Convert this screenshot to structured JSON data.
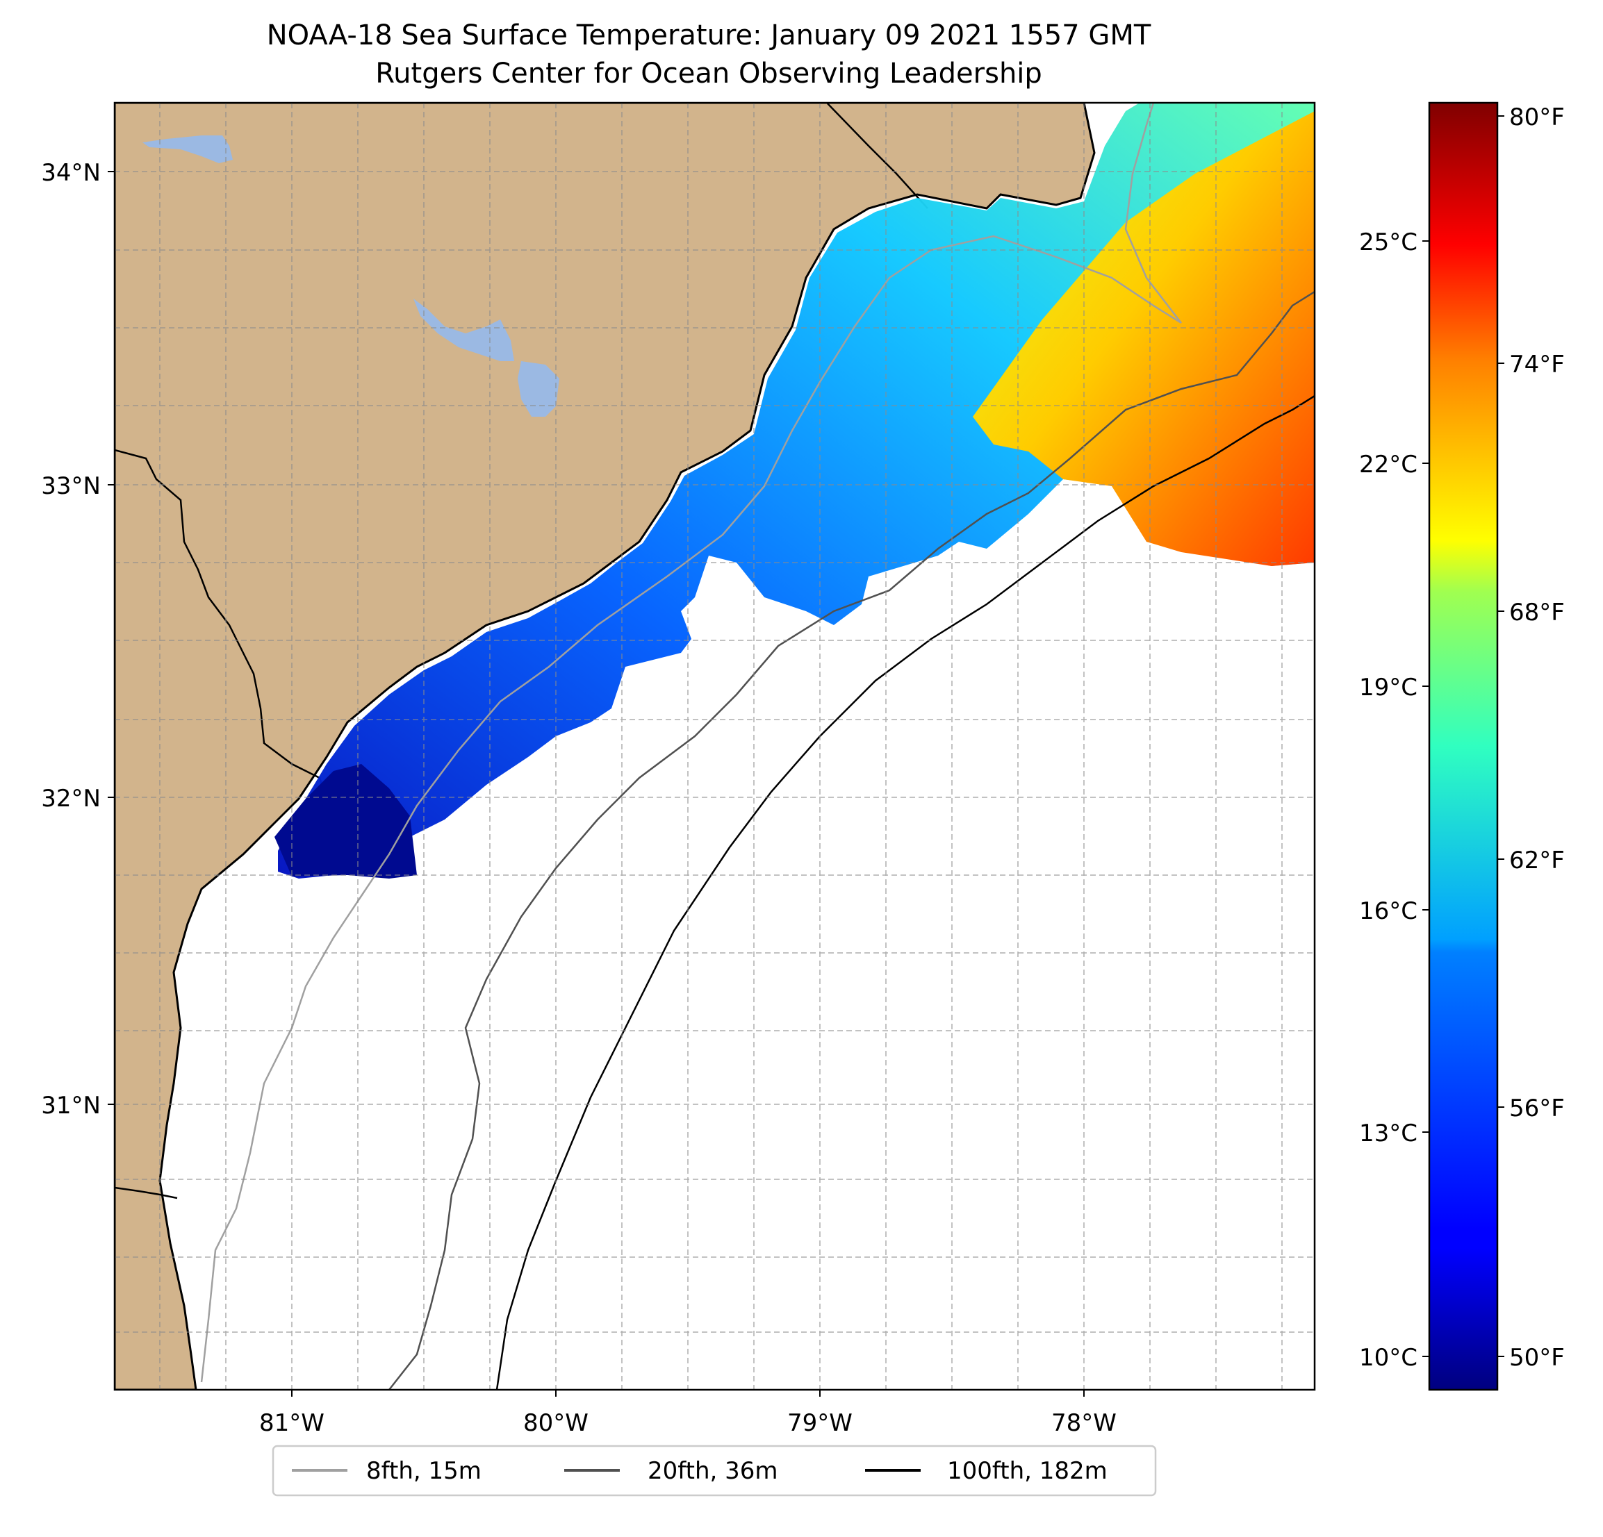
{
  "title": {
    "line1": "NOAA-18 Sea Surface Temperature: January 09 2021 1557 GMT",
    "line2": "Rutgers Center for Ocean Observing Leadership"
  },
  "map": {
    "latitude_labels": [
      "34°N",
      "33°N",
      "32°N",
      "31°N"
    ],
    "longitude_labels": [
      "81°W",
      "80°W",
      "79°W",
      "78°W"
    ],
    "colors": {
      "land": "#d2b48c",
      "lake": "#9bb9e3",
      "no_data": "#ffffff",
      "contour_8fth": "#a0a0a0",
      "contour_20fth": "#505050",
      "contour_100fth": "#000000"
    }
  },
  "colorbar": {
    "celsius_labels": [
      "25°C",
      "22°C",
      "19°C",
      "16°C",
      "13°C",
      "10°C"
    ],
    "fahrenheit_labels": [
      "80°F",
      "74°F",
      "68°F",
      "62°F",
      "56°F",
      "50°F"
    ],
    "range_f": [
      49.5,
      80.7
    ],
    "colormap": "jet"
  },
  "legend": {
    "items": [
      {
        "label": "8fth, 15m",
        "color": "#a0a0a0"
      },
      {
        "label": "20fth, 36m",
        "color": "#505050"
      },
      {
        "label": "100fth, 182m",
        "color": "#000000"
      }
    ]
  }
}
